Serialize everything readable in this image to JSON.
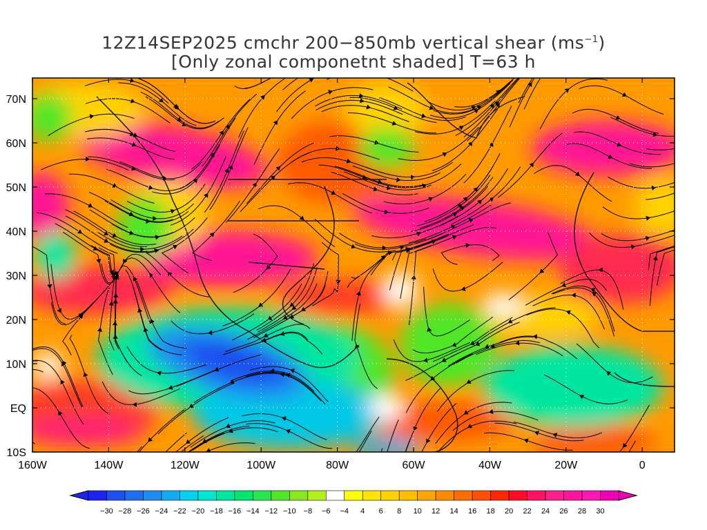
{
  "title": {
    "line1_prefix": "12Z14SEP2025 cmchr 200−850mb vertical shear (ms",
    "line1_sup": "−1",
    "line1_suffix": ")",
    "line2": "[Only zonal componetnt shaded] T=63 h"
  },
  "map": {
    "lon_labels": [
      "160W",
      "140W",
      "120W",
      "100W",
      "80W",
      "60W",
      "40W",
      "20W",
      "0"
    ],
    "lat_labels": [
      "70N",
      "60N",
      "50N",
      "40N",
      "30N",
      "20N",
      "10N",
      "EQ",
      "10S"
    ]
  },
  "colorbar": {
    "labels": [
      "−30",
      "−28",
      "−26",
      "−24",
      "−22",
      "−20",
      "−18",
      "−16",
      "−14",
      "−12",
      "−10",
      "−8",
      "−6",
      "−4",
      "4",
      "6",
      "8",
      "10",
      "12",
      "14",
      "16",
      "18",
      "20",
      "22",
      "24",
      "26",
      "28",
      "30"
    ],
    "colors": [
      "#1e24f0",
      "#1e50f0",
      "#1e6ef0",
      "#1e8cf0",
      "#12aaf0",
      "#00d2f0",
      "#00e6d2",
      "#00e6a0",
      "#00e670",
      "#28e650",
      "#50e628",
      "#8ce61e",
      "#b4f01e",
      "#ffffff",
      "#ffff00",
      "#ffe600",
      "#ffd200",
      "#ffbe00",
      "#ffa500",
      "#ff8c00",
      "#ff6e00",
      "#ff5000",
      "#ff2800",
      "#ff0a28",
      "#ff1464",
      "#ff1e8c",
      "#ff14a0",
      "#ff14b4",
      "#f000b4"
    ]
  }
}
